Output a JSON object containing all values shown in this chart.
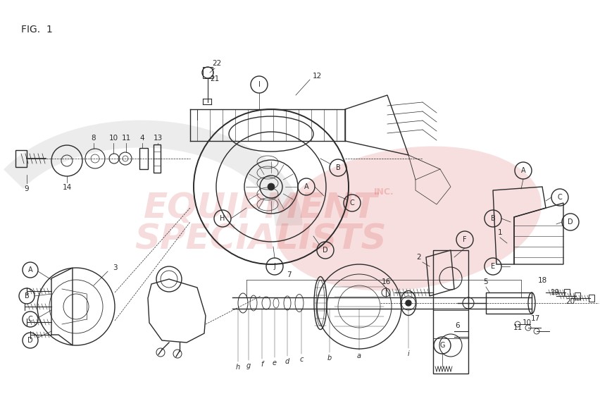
{
  "fig_label": "FIG.  1",
  "background_color": "#ffffff",
  "line_color": "#2a2a2a",
  "wm_text1": "EQUIPMENT",
  "wm_text2": "SPECIALISTS",
  "wm_inc": "INC.",
  "wm_color": "#cc3333",
  "wm_alpha": 0.17,
  "fig_width": 8.53,
  "fig_height": 5.86,
  "dpi": 100
}
